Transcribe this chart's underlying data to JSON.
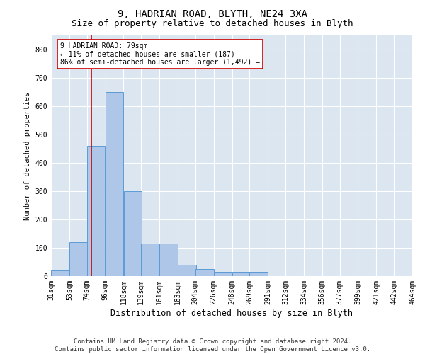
{
  "title1": "9, HADRIAN ROAD, BLYTH, NE24 3XA",
  "title2": "Size of property relative to detached houses in Blyth",
  "xlabel": "Distribution of detached houses by size in Blyth",
  "ylabel": "Number of detached properties",
  "footer1": "Contains HM Land Registry data © Crown copyright and database right 2024.",
  "footer2": "Contains public sector information licensed under the Open Government Licence v3.0.",
  "annotation_line1": "9 HADRIAN ROAD: 79sqm",
  "annotation_line2": "← 11% of detached houses are smaller (187)",
  "annotation_line3": "86% of semi-detached houses are larger (1,492) →",
  "bar_color": "#aec6e8",
  "bar_edge_color": "#5b9bd5",
  "background_color": "#dce6f1",
  "grid_color": "#ffffff",
  "ref_line_color": "#cc0000",
  "ref_line_x": 79,
  "bins": [
    31,
    53,
    74,
    96,
    118,
    139,
    161,
    183,
    204,
    226,
    248,
    269,
    291,
    312,
    334,
    356,
    377,
    399,
    421,
    442,
    464
  ],
  "counts": [
    20,
    120,
    460,
    650,
    300,
    115,
    115,
    40,
    25,
    15,
    15,
    15,
    0,
    0,
    0,
    0,
    0,
    0,
    0,
    0
  ],
  "ylim": [
    0,
    850
  ],
  "yticks": [
    0,
    100,
    200,
    300,
    400,
    500,
    600,
    700,
    800
  ],
  "title1_fontsize": 10,
  "title2_fontsize": 9,
  "xlabel_fontsize": 8.5,
  "ylabel_fontsize": 7.5,
  "tick_fontsize": 7,
  "annotation_fontsize": 7,
  "footer_fontsize": 6.5
}
